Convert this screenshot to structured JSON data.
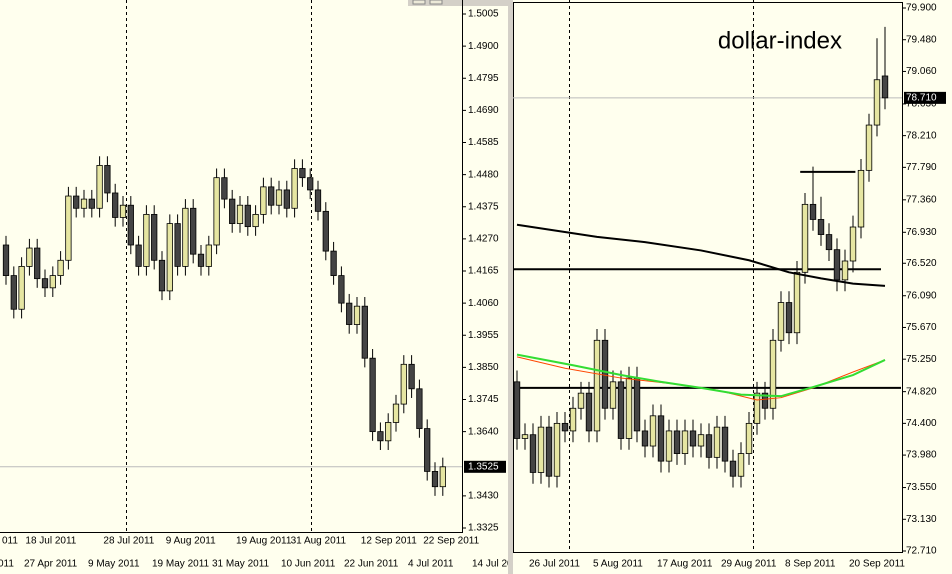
{
  "chart_data": [
    {
      "type": "candlestick",
      "up_color": "#e6e6a2",
      "down_color": "#444444",
      "ylim": [
        1.3325,
        1.5005
      ],
      "yticks": [
        1.5005,
        {
          "value": 1.49,
          "label": "1.4900"
        },
        1.4795,
        {
          "value": 1.469,
          "label": "1.4690"
        },
        1.4585,
        {
          "value": 1.448,
          "label": "1.4480"
        },
        1.4375,
        {
          "value": 1.427,
          "label": "1.4270"
        },
        1.4165,
        {
          "value": 1.406,
          "label": "1.4060"
        },
        1.3955,
        {
          "value": 1.385,
          "label": "1.3850"
        },
        1.3745,
        {
          "value": 1.364,
          "label": "1.3640"
        },
        {
          "value": 1.343,
          "label": "1.3430"
        },
        1.3325
      ],
      "last_price": 1.3525,
      "categories": [
        "011",
        null,
        null,
        "18 Jul 2011",
        null,
        null,
        null,
        null,
        null,
        null,
        null,
        null,
        null,
        "28 Jul 2011",
        null,
        null,
        null,
        null,
        null,
        null,
        null,
        "9 Aug 2011",
        null,
        null,
        null,
        null,
        null,
        null,
        null,
        null,
        "19 Aug 2011",
        null,
        null,
        null,
        null,
        null,
        null,
        "31 Aug 2011",
        null,
        null,
        null,
        null,
        null,
        null,
        null,
        null,
        "12 Sep 2011",
        null,
        null,
        null,
        null,
        null,
        null,
        null,
        "22 Sep 2011",
        null,
        null
      ],
      "open": [
        1.425,
        1.415,
        1.404,
        1.418,
        1.424,
        1.414,
        1.411,
        1.415,
        1.42,
        1.441,
        1.437,
        1.44,
        1.437,
        1.451,
        1.442,
        1.434,
        1.438,
        1.425,
        1.418,
        1.435,
        1.42,
        1.41,
        1.432,
        1.418,
        1.437,
        1.422,
        1.418,
        1.425,
        1.447,
        1.44,
        1.432,
        1.438,
        1.431,
        1.435,
        1.444,
        1.438,
        1.443,
        1.437,
        1.45,
        1.447,
        1.443,
        1.436,
        1.423,
        1.415,
        1.406,
        1.399,
        1.405,
        1.388,
        1.364,
        1.361,
        1.367,
        1.373,
        1.386,
        1.378,
        1.365,
        1.351,
        1.346
      ],
      "high": [
        1.428,
        1.418,
        1.421,
        1.427,
        1.427,
        1.417,
        1.418,
        1.423,
        1.444,
        1.444,
        1.443,
        1.443,
        1.454,
        1.454,
        1.445,
        1.441,
        1.441,
        1.428,
        1.438,
        1.438,
        1.423,
        1.435,
        1.435,
        1.44,
        1.44,
        1.425,
        1.428,
        1.45,
        1.45,
        1.443,
        1.441,
        1.441,
        1.438,
        1.447,
        1.447,
        1.446,
        1.446,
        1.453,
        1.453,
        1.45,
        1.446,
        1.439,
        1.426,
        1.418,
        1.409,
        1.408,
        1.408,
        1.391,
        1.367,
        1.37,
        1.376,
        1.389,
        1.389,
        1.381,
        1.368,
        1.354,
        1.3555
      ],
      "low": [
        1.412,
        1.401,
        1.401,
        1.415,
        1.411,
        1.408,
        1.408,
        1.412,
        1.417,
        1.434,
        1.434,
        1.434,
        1.434,
        1.439,
        1.431,
        1.431,
        1.422,
        1.415,
        1.415,
        1.417,
        1.407,
        1.407,
        1.415,
        1.415,
        1.419,
        1.415,
        1.415,
        1.422,
        1.437,
        1.429,
        1.429,
        1.428,
        1.428,
        1.432,
        1.435,
        1.435,
        1.434,
        1.434,
        1.444,
        1.44,
        1.433,
        1.42,
        1.412,
        1.403,
        1.396,
        1.396,
        1.385,
        1.361,
        1.358,
        1.358,
        1.364,
        1.37,
        1.375,
        1.362,
        1.348,
        1.343,
        1.343
      ],
      "close": [
        1.415,
        1.404,
        1.418,
        1.424,
        1.414,
        1.411,
        1.415,
        1.42,
        1.441,
        1.437,
        1.44,
        1.437,
        1.451,
        1.442,
        1.434,
        1.438,
        1.425,
        1.418,
        1.435,
        1.42,
        1.41,
        1.432,
        1.418,
        1.437,
        1.422,
        1.418,
        1.425,
        1.447,
        1.44,
        1.432,
        1.438,
        1.431,
        1.435,
        1.444,
        1.438,
        1.443,
        1.437,
        1.45,
        1.447,
        1.443,
        1.436,
        1.423,
        1.415,
        1.406,
        1.399,
        1.405,
        1.388,
        1.364,
        1.361,
        1.367,
        1.373,
        1.386,
        1.378,
        1.365,
        1.351,
        1.346,
        1.3525
      ]
    },
    {
      "type": "candlestick",
      "title": "dollar-index",
      "up_color": "#e6e6a2",
      "down_color": "#444444",
      "ylim": [
        72.71,
        79.9
      ],
      "yticks": [
        {
          "value": 79.9,
          "label": "79.900"
        },
        {
          "value": 79.48,
          "label": "79.480"
        },
        {
          "value": 79.06,
          "label": "79.060"
        },
        {
          "value": 78.63,
          "label": "78.630"
        },
        {
          "value": 78.21,
          "label": "78.210"
        },
        {
          "value": 77.79,
          "label": "77.790"
        },
        {
          "value": 77.36,
          "label": "77.360"
        },
        {
          "value": 76.93,
          "label": "76.930"
        },
        {
          "value": 76.52,
          "label": "76.520"
        },
        {
          "value": 76.09,
          "label": "76.090"
        },
        {
          "value": 75.67,
          "label": "75.670"
        },
        {
          "value": 75.25,
          "label": "75.250"
        },
        {
          "value": 74.82,
          "label": "74.820"
        },
        {
          "value": 74.4,
          "label": "74.400"
        },
        {
          "value": 73.98,
          "label": "73.980"
        },
        {
          "value": 73.55,
          "label": "73.550"
        },
        {
          "value": 73.13,
          "label": "73.130"
        },
        {
          "value": 72.71,
          "label": "72.710"
        }
      ],
      "last_price": {
        "value": 78.71,
        "label": "78.710"
      },
      "categories": [
        null,
        null,
        "26 Jul 2011",
        null,
        null,
        null,
        null,
        null,
        null,
        null,
        "5 Aug 2011",
        null,
        null,
        null,
        null,
        null,
        null,
        null,
        "17 Aug 2011",
        null,
        null,
        null,
        null,
        null,
        null,
        null,
        "29 Aug 2011",
        null,
        null,
        null,
        null,
        null,
        null,
        null,
        "8 Sep 2011",
        null,
        null,
        null,
        null,
        null,
        null,
        null,
        "20 Sep 2011",
        null,
        null,
        null,
        null
      ],
      "open": [
        74.95,
        74.2,
        74.25,
        73.75,
        74.35,
        73.7,
        74.4,
        74.3,
        74.6,
        74.8,
        74.3,
        75.5,
        74.6,
        74.95,
        74.2,
        75.0,
        74.3,
        74.1,
        74.5,
        73.9,
        74.3,
        74.0,
        74.3,
        74.1,
        74.25,
        73.95,
        74.35,
        73.9,
        73.7,
        74.0,
        74.4,
        74.8,
        74.6,
        75.5,
        76.0,
        75.6,
        76.4,
        77.3,
        77.1,
        76.9,
        76.7,
        76.3,
        76.55,
        77.0,
        77.75,
        78.35,
        79.0
      ],
      "high": [
        75.1,
        74.4,
        74.4,
        74.5,
        74.5,
        74.55,
        74.55,
        74.75,
        74.95,
        74.95,
        75.65,
        75.65,
        75.1,
        75.1,
        75.15,
        75.15,
        74.45,
        74.65,
        74.65,
        74.45,
        74.45,
        74.45,
        74.45,
        74.4,
        74.4,
        74.5,
        74.5,
        74.05,
        74.15,
        74.55,
        74.95,
        74.95,
        75.65,
        76.15,
        76.15,
        76.55,
        77.45,
        77.8,
        77.4,
        77.05,
        76.85,
        76.7,
        77.15,
        77.9,
        78.5,
        79.5,
        79.65
      ],
      "low": [
        74.05,
        74.05,
        73.6,
        73.6,
        73.55,
        73.55,
        74.15,
        74.15,
        74.45,
        74.15,
        74.15,
        74.45,
        74.45,
        74.05,
        74.05,
        74.15,
        73.95,
        73.95,
        73.75,
        73.75,
        73.85,
        73.85,
        73.95,
        73.95,
        73.8,
        73.8,
        73.75,
        73.55,
        73.55,
        73.85,
        74.25,
        74.45,
        74.45,
        75.35,
        75.45,
        75.45,
        76.25,
        76.95,
        76.75,
        76.55,
        76.15,
        76.15,
        76.4,
        76.85,
        77.6,
        78.2,
        78.56
      ],
      "close": [
        74.2,
        74.25,
        73.75,
        74.35,
        73.7,
        74.4,
        74.3,
        74.6,
        74.8,
        74.3,
        75.5,
        74.6,
        74.95,
        74.2,
        75.0,
        74.3,
        74.1,
        74.5,
        73.9,
        74.3,
        74.0,
        74.3,
        74.1,
        74.25,
        73.95,
        74.35,
        73.9,
        73.7,
        74.0,
        74.4,
        74.8,
        74.6,
        75.5,
        76.0,
        75.6,
        76.4,
        77.3,
        77.1,
        76.9,
        76.7,
        76.3,
        76.55,
        77.0,
        77.75,
        78.35,
        78.95,
        78.71
      ],
      "moving_averages": [
        {
          "color": "#000000",
          "x": [
            0,
            10,
            16,
            23,
            29,
            34,
            38,
            42,
            46
          ],
          "values": [
            77.03,
            76.87,
            76.8,
            76.69,
            76.56,
            76.4,
            76.32,
            76.25,
            76.22
          ]
        },
        {
          "color": "#ff4500",
          "x": [
            0,
            6,
            13,
            19,
            25,
            30,
            33,
            37,
            42,
            46
          ],
          "values": [
            75.28,
            75.13,
            75.0,
            74.93,
            74.84,
            74.71,
            74.74,
            74.87,
            75.08,
            75.24
          ]
        },
        {
          "color": "#33dd33",
          "x": [
            0,
            7,
            13,
            18,
            23,
            28,
            33,
            37,
            42,
            46
          ],
          "values": [
            75.31,
            75.17,
            75.04,
            74.95,
            74.87,
            74.78,
            74.76,
            74.88,
            75.04,
            75.24
          ]
        }
      ],
      "levels": [
        {
          "value": 76.44,
          "xrange": [
            -0.5,
            45.5
          ]
        },
        {
          "value": 74.87,
          "xrange": [
            -0.5,
            48
          ]
        },
        {
          "value": 77.73,
          "xrange": [
            35.4,
            42.3
          ]
        }
      ]
    }
  ],
  "background_axis_labels": [
    "011",
    "27 Apr 2011",
    "9 May 2011",
    "19 May 2011",
    "31 May 2011",
    "10 Jun 2011",
    "22 Jun 2011",
    "4 Jul 2011",
    "14 Jul 2011"
  ]
}
